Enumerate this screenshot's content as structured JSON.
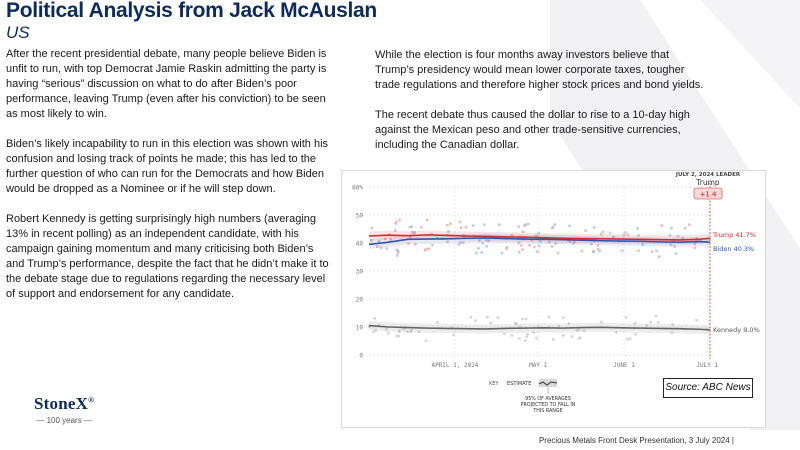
{
  "header": {
    "title": "Political Analysis from Jack McAuslan",
    "subtitle": "US"
  },
  "left_column": {
    "paragraphs": [
      "After the recent presidential debate, many people believe Biden is unfit to run, with top Democrat Jamie Raskin admitting the party is having “serious” discussion on what to do after Biden’s poor performance, leaving Trump (even after his conviction) to be seen as most likely to win.",
      "Biden’s likely incapability to run in this election was shown with his confusion and losing track of points he made; this has led to the further question of who can run for the Democrats and how Biden would be dropped as a Nominee or if he will step down.",
      "Robert Kennedy is getting surprisingly high numbers (averaging 13% in recent polling) as an independent candidate, with his campaign gaining momentum and many criticising both Biden’s and Trump’s performance, despite the fact that he didn’t make it to the debate stage due to regulations regarding the necessary level of support and endorsement for any candidate."
    ]
  },
  "right_column": {
    "paragraphs": [
      "While the election is four months away investors believe that Trump’s presidency would mean lower corporate taxes, tougher trade regulations and therefore higher stock prices and bond yields.",
      "The recent debate thus caused the dollar to rise to a 10-day high against the Mexican peso and other trade-sensitive currencies, including the Canadian dollar."
    ]
  },
  "chart_data": {
    "type": "line",
    "title": "",
    "xlabel": "",
    "ylabel": "",
    "ylim": [
      0,
      60
    ],
    "yticks": [
      "0",
      "10",
      "20",
      "30",
      "40",
      "50",
      "60%"
    ],
    "xlim": [
      "2024-03-01",
      "2024-07-02"
    ],
    "xticks": [
      {
        "date": "2024-04-01",
        "label": "APRIL 1, 2024"
      },
      {
        "date": "2024-05-01",
        "label": "MAY 1"
      },
      {
        "date": "2024-06-01",
        "label": "JUNE 1"
      },
      {
        "date": "2024-07-01",
        "label": "JULY 1"
      }
    ],
    "grid": true,
    "leader_label": "JULY 2, 2024 LEADER",
    "leader_name": "Trump",
    "leader_margin": "+1.4",
    "x": [
      "2024-03-01",
      "2024-03-08",
      "2024-03-15",
      "2024-03-22",
      "2024-03-29",
      "2024-04-05",
      "2024-04-12",
      "2024-04-19",
      "2024-04-26",
      "2024-05-03",
      "2024-05-10",
      "2024-05-17",
      "2024-05-24",
      "2024-05-31",
      "2024-06-07",
      "2024-06-14",
      "2024-06-21",
      "2024-06-28",
      "2024-07-02"
    ],
    "series": [
      {
        "name": "Trump",
        "end_label": "Trump 41.7%",
        "color": "#d62b2b",
        "values": [
          42.5,
          42.8,
          42.6,
          42.9,
          42.7,
          42.5,
          42.4,
          42.2,
          42.1,
          41.9,
          41.7,
          41.6,
          41.5,
          41.4,
          41.3,
          41.2,
          41.1,
          41.3,
          41.7
        ]
      },
      {
        "name": "Biden",
        "end_label": "Biden 40.3%",
        "color": "#2f56b0",
        "values": [
          39.5,
          40.3,
          41.3,
          41.4,
          41.5,
          41.7,
          41.8,
          41.6,
          41.4,
          41.3,
          41.2,
          41.0,
          40.8,
          40.7,
          40.6,
          40.4,
          40.3,
          40.5,
          40.3
        ]
      },
      {
        "name": "Kennedy",
        "end_label": "Kennedy 9.0%",
        "color": "#666666",
        "values": [
          10.5,
          10.0,
          9.8,
          9.6,
          9.5,
          9.4,
          9.3,
          9.5,
          9.6,
          9.7,
          9.6,
          9.8,
          9.9,
          9.7,
          9.6,
          9.5,
          9.4,
          9.2,
          9.0
        ]
      }
    ],
    "key": {
      "title": "KEY",
      "estimate_label": "ESTIMATE",
      "band_note": [
        "95% OF AVERAGES",
        "PROJECTED TO FALL IN",
        "THIS RANGE"
      ]
    }
  },
  "source_box": "Source: ABC News",
  "logo": {
    "brand": "StoneX",
    "mark": "®",
    "sub": "— 100 years —"
  },
  "footer": "Precious Metals Front Desk Presentation, 3 July 2024 |"
}
